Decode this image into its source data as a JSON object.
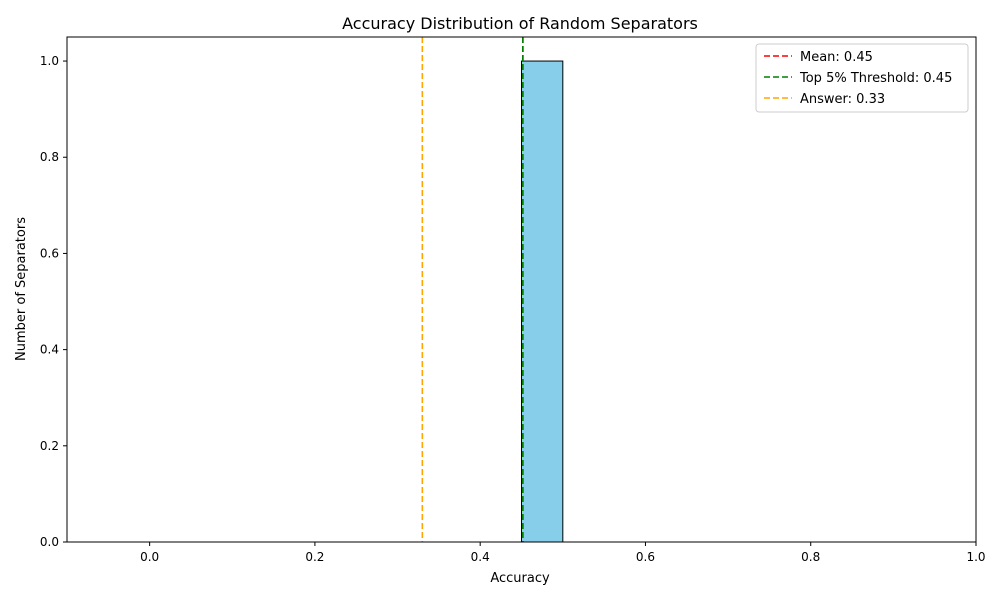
{
  "chart_data": {
    "type": "bar",
    "title": "Accuracy Distribution of Random Separators",
    "xlabel": "Accuracy",
    "ylabel": "Number of Separators",
    "xlim": [
      -0.1,
      1.0
    ],
    "ylim": [
      0.0,
      1.05
    ],
    "xticks": [
      "0.0",
      "0.2",
      "0.4",
      "0.6",
      "0.8",
      "1.0"
    ],
    "yticks": [
      "0.0",
      "0.2",
      "0.4",
      "0.6",
      "0.8",
      "1.0"
    ],
    "bin_edges": [
      -0.05,
      0.0,
      0.05,
      0.1,
      0.15,
      0.2,
      0.25,
      0.3,
      0.35,
      0.4,
      0.45,
      0.5,
      0.55,
      0.6,
      0.65,
      0.7,
      0.75,
      0.8,
      0.85,
      0.9,
      0.95
    ],
    "counts": [
      0,
      0,
      0,
      0,
      0,
      0,
      0,
      0,
      0,
      0,
      1,
      0,
      0,
      0,
      0,
      0,
      0,
      0,
      0,
      0
    ],
    "bar_color": "#87CEEB",
    "reference_lines": [
      {
        "value": 0.4516,
        "label": "Mean: 0.45",
        "color": "#FF0000"
      },
      {
        "value": 0.4516,
        "label": "Top 5% Threshold: 0.45",
        "color": "#008000"
      },
      {
        "value": 0.33,
        "label": "Answer: 0.33",
        "color": "#FFA500"
      }
    ],
    "legend_position": "top-right",
    "grid": false
  }
}
